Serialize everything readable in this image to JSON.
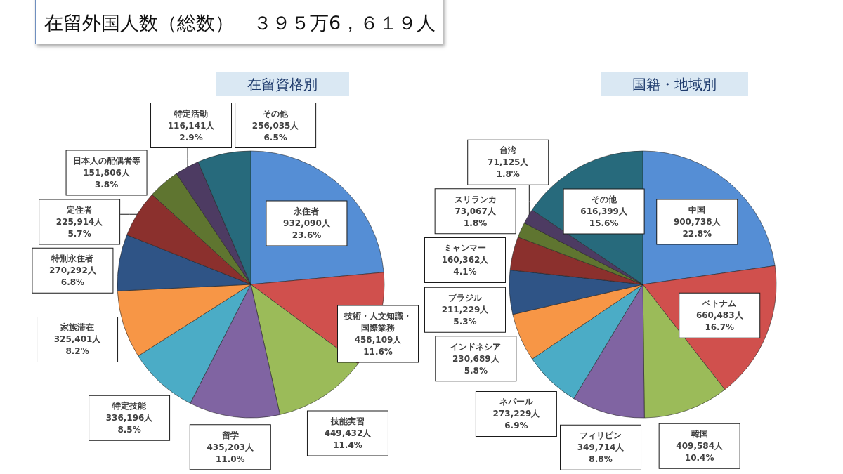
{
  "chart_data": [
    {
      "type": "pie",
      "title": "在留資格別",
      "annotations": [
        "在留外国人数（総数）　３９５万6，６１９人"
      ],
      "categories": [
        "永住者",
        "技術・人文知識・国際業務",
        "技能実習",
        "留学",
        "特定技能",
        "家族滞在",
        "特別永住者",
        "定住者",
        "日本人の配偶者等",
        "特定活動",
        "その他"
      ],
      "values": [
        932090,
        458109,
        449432,
        435203,
        336196,
        325401,
        270292,
        225914,
        151806,
        116141,
        256035
      ],
      "colors": [
        "#558ed5",
        "#d0504d",
        "#9bbb59",
        "#8064a2",
        "#4bacc6",
        "#f79646",
        "#2f5486",
        "#8b302d",
        "#5f7530",
        "#4d3b62",
        "#276a7c"
      ],
      "value_labels": [
        "932,090人\n23.6%",
        "458,109人\n11.6%",
        "449,432人\n11.4%",
        "435,203人\n11.0%",
        "336,196人\n8.5%",
        "325,401人\n8.2%",
        "270,292人\n6.8%",
        "225,914人\n5.7%",
        "151,806人\n3.8%",
        "116,141人\n2.9%",
        "256,035人\n6.5%"
      ]
    },
    {
      "type": "pie",
      "title": "国籍・地域別",
      "categories": [
        "中国",
        "ベトナム",
        "韓国",
        "フィリピン",
        "ネパール",
        "インドネシア",
        "ブラジル",
        "ミャンマー",
        "スリランカ",
        "台湾",
        "その他"
      ],
      "values": [
        900738,
        660483,
        409584,
        349714,
        273229,
        230689,
        211229,
        160362,
        73067,
        71125,
        616399
      ],
      "colors": [
        "#558ed5",
        "#d0504d",
        "#9bbb59",
        "#8064a2",
        "#4bacc6",
        "#f79646",
        "#2f5486",
        "#8b302d",
        "#5f7530",
        "#4d3b62",
        "#276a7c"
      ],
      "value_labels": [
        "900,738人\n22.8%",
        "660,483人\n16.7%",
        "409,584人\n10.4%",
        "349,714人\n8.8%",
        "273,229人\n6.9%",
        "230,689人\n5.8%",
        "211,229人\n5.3%",
        "160,362人\n4.1%",
        "73,067人\n1.8%",
        "71,125人\n1.8%",
        "616,399人\n15.6%"
      ]
    }
  ]
}
